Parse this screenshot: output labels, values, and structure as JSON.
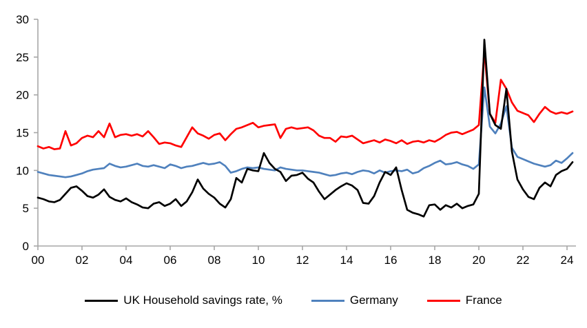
{
  "chart_data": {
    "type": "line",
    "title": "",
    "subtitle": "",
    "xlabel": "",
    "ylabel": "",
    "x_unit": "year (quarterly observations)",
    "x_tick_labels": [
      "00",
      "02",
      "04",
      "06",
      "08",
      "10",
      "12",
      "14",
      "16",
      "18",
      "20",
      "22",
      "24"
    ],
    "y_ticks": [
      0,
      5,
      10,
      15,
      20,
      25,
      30
    ],
    "ylim": [
      0,
      30
    ],
    "x_range": [
      "2000 Q1",
      "2024 Q2"
    ],
    "grid": false,
    "legend_position": "bottom",
    "axis_color": "#a6a6a6",
    "text_color": "#000000",
    "background_color": "#ffffff",
    "series": [
      {
        "name": "UK Household savings rate, %",
        "color": "#000000",
        "values": [
          6.4,
          6.2,
          5.9,
          5.8,
          6.1,
          6.9,
          7.7,
          7.9,
          7.3,
          6.6,
          6.4,
          6.8,
          7.5,
          6.5,
          6.1,
          5.9,
          6.3,
          5.8,
          5.5,
          5.1,
          5.0,
          5.6,
          5.8,
          5.3,
          5.6,
          6.2,
          5.3,
          5.9,
          7.1,
          8.8,
          7.6,
          6.9,
          6.4,
          5.6,
          5.1,
          6.2,
          9.0,
          8.4,
          10.2,
          10.0,
          9.9,
          12.3,
          11.0,
          10.2,
          9.8,
          8.6,
          9.3,
          9.4,
          9.7,
          8.9,
          8.4,
          7.2,
          6.2,
          6.8,
          7.4,
          7.9,
          8.3,
          8.0,
          7.4,
          5.7,
          5.6,
          6.6,
          8.4,
          9.8,
          9.4,
          10.4,
          7.4,
          4.8,
          4.4,
          4.2,
          3.9,
          5.4,
          5.5,
          4.8,
          5.4,
          5.1,
          5.6,
          5.0,
          5.3,
          5.5,
          6.9,
          27.3,
          17.5,
          16.0,
          15.5,
          20.8,
          12.5,
          8.8,
          7.5,
          6.5,
          6.2,
          7.7,
          8.4,
          7.9,
          9.4,
          9.9,
          10.2,
          11.1
        ]
      },
      {
        "name": "Germany",
        "color": "#4f81bd",
        "values": [
          9.8,
          9.6,
          9.4,
          9.3,
          9.2,
          9.1,
          9.2,
          9.4,
          9.6,
          9.9,
          10.1,
          10.2,
          10.3,
          10.9,
          10.6,
          10.4,
          10.5,
          10.7,
          10.9,
          10.6,
          10.5,
          10.7,
          10.5,
          10.3,
          10.8,
          10.6,
          10.3,
          10.5,
          10.6,
          10.8,
          11.0,
          10.8,
          10.9,
          11.1,
          10.6,
          9.7,
          9.9,
          10.2,
          10.4,
          10.3,
          10.4,
          10.2,
          10.1,
          10.0,
          10.4,
          10.2,
          10.1,
          10.0,
          10.0,
          9.9,
          9.8,
          9.7,
          9.5,
          9.3,
          9.4,
          9.6,
          9.7,
          9.5,
          9.8,
          10.0,
          9.9,
          9.6,
          10.0,
          9.7,
          9.9,
          10.0,
          9.9,
          10.1,
          9.6,
          9.8,
          10.3,
          10.6,
          11.0,
          11.3,
          10.8,
          10.9,
          11.1,
          10.8,
          10.6,
          10.2,
          10.8,
          21.0,
          15.8,
          14.9,
          16.2,
          18.5,
          13.0,
          11.8,
          11.5,
          11.2,
          10.9,
          10.7,
          10.5,
          10.7,
          11.3,
          11.0,
          11.6,
          12.3
        ]
      },
      {
        "name": "France",
        "color": "#ff0000",
        "values": [
          13.2,
          12.9,
          13.1,
          12.8,
          12.9,
          15.2,
          13.3,
          13.6,
          14.3,
          14.6,
          14.4,
          15.2,
          14.4,
          16.2,
          14.4,
          14.7,
          14.8,
          14.6,
          14.8,
          14.5,
          15.2,
          14.4,
          13.5,
          13.7,
          13.6,
          13.3,
          13.1,
          14.4,
          15.7,
          14.9,
          14.6,
          14.2,
          14.7,
          14.9,
          14.0,
          14.8,
          15.5,
          15.7,
          16.0,
          16.3,
          15.7,
          15.9,
          16.0,
          16.1,
          14.3,
          15.5,
          15.7,
          15.5,
          15.6,
          15.7,
          15.3,
          14.6,
          14.3,
          14.3,
          13.8,
          14.5,
          14.4,
          14.6,
          14.1,
          13.6,
          13.8,
          14.0,
          13.7,
          14.1,
          13.9,
          13.6,
          14.0,
          13.5,
          13.8,
          13.9,
          13.7,
          14.0,
          13.8,
          14.2,
          14.7,
          15.0,
          15.1,
          14.8,
          15.1,
          15.4,
          16.0,
          25.8,
          17.5,
          16.3,
          22.0,
          20.8,
          19.0,
          17.9,
          17.6,
          17.3,
          16.4,
          17.5,
          18.4,
          17.8,
          17.5,
          17.7,
          17.5,
          17.8
        ]
      }
    ]
  },
  "legend": {
    "items": [
      {
        "label": "UK Household savings rate, %"
      },
      {
        "label": "Germany"
      },
      {
        "label": "France"
      }
    ]
  }
}
